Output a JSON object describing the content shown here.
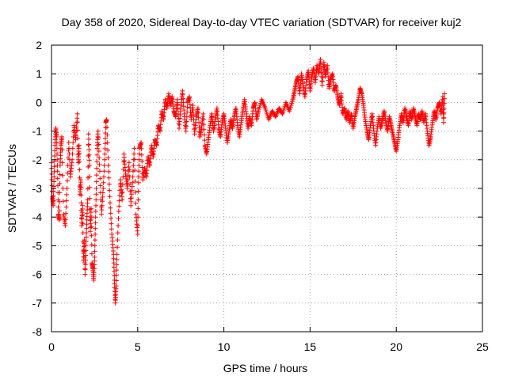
{
  "chart_data": {
    "type": "scatter",
    "title": "Day 358 of 2020, Sidereal Day-to-day VTEC variation (SDTVAR) for receiver kuj2",
    "xlabel": "GPS time / hours",
    "ylabel": "SDTVAR / TECUs",
    "xlim": [
      0,
      25
    ],
    "ylim": [
      -8,
      2
    ],
    "xticks": [
      0,
      5,
      10,
      15,
      20,
      25
    ],
    "xtick_labels": [
      "0",
      "5",
      "10",
      "15",
      "20",
      "25"
    ],
    "yticks": [
      -8,
      -7,
      -6,
      -5,
      -4,
      -3,
      -2,
      -1,
      0,
      1,
      2
    ],
    "ytick_labels": [
      "-8",
      "-7",
      "-6",
      "-5",
      "-4",
      "-3",
      "-2",
      "-1",
      "0",
      "1",
      "2"
    ],
    "grid": true,
    "marker": "+",
    "series": [
      {
        "name": "SDTVAR",
        "color": "#ff0000",
        "points": [
          [
            0.0,
            -2.1
          ],
          [
            0.05,
            -3.3
          ],
          [
            0.1,
            -3.6
          ],
          [
            0.15,
            -2.6
          ],
          [
            0.2,
            -1.5
          ],
          [
            0.25,
            -0.9
          ],
          [
            0.3,
            -1.2
          ],
          [
            0.35,
            -2.4
          ],
          [
            0.4,
            -3.9
          ],
          [
            0.45,
            -4.1
          ],
          [
            0.5,
            -2.2
          ],
          [
            0.55,
            -1.5
          ],
          [
            0.6,
            -1.2
          ],
          [
            0.7,
            -3.9
          ],
          [
            0.8,
            -4.3
          ],
          [
            0.9,
            -3.0
          ],
          [
            1.0,
            -1.4
          ],
          [
            1.1,
            -2.6
          ],
          [
            1.2,
            -2.0
          ],
          [
            1.3,
            -0.8
          ],
          [
            1.4,
            -1.3
          ],
          [
            1.5,
            -0.4
          ],
          [
            1.55,
            -2.1
          ],
          [
            1.6,
            -1.5
          ],
          [
            1.65,
            -3.2
          ],
          [
            1.7,
            -2.7
          ],
          [
            1.75,
            -4.3
          ],
          [
            1.8,
            -3.6
          ],
          [
            1.85,
            -5.5
          ],
          [
            1.9,
            -4.8
          ],
          [
            1.95,
            -6.0
          ],
          [
            2.0,
            -5.0
          ],
          [
            2.05,
            -4.1
          ],
          [
            2.1,
            -3.4
          ],
          [
            2.15,
            -1.1
          ],
          [
            2.2,
            -2.2
          ],
          [
            2.25,
            -4.5
          ],
          [
            2.3,
            -3.7
          ],
          [
            2.35,
            -5.6
          ],
          [
            2.4,
            -5.8
          ],
          [
            2.45,
            -6.2
          ],
          [
            2.5,
            -5.4
          ],
          [
            2.55,
            -4.2
          ],
          [
            2.6,
            -3.0
          ],
          [
            2.65,
            -1.6
          ],
          [
            2.7,
            -1.0
          ],
          [
            2.8,
            -2.4
          ],
          [
            2.9,
            -3.9
          ],
          [
            3.0,
            -3.0
          ],
          [
            3.1,
            -1.8
          ],
          [
            3.15,
            -0.7
          ],
          [
            3.2,
            -0.6
          ],
          [
            3.3,
            -2.2
          ],
          [
            3.4,
            -3.5
          ],
          [
            3.5,
            -4.6
          ],
          [
            3.6,
            -5.3
          ],
          [
            3.65,
            -6.2
          ],
          [
            3.7,
            -7.0
          ],
          [
            3.75,
            -6.4
          ],
          [
            3.8,
            -5.3
          ],
          [
            3.9,
            -3.8
          ],
          [
            4.0,
            -2.7
          ],
          [
            4.1,
            -3.4
          ],
          [
            4.2,
            -1.8
          ],
          [
            4.3,
            -2.5
          ],
          [
            4.4,
            -3.0
          ],
          [
            4.5,
            -2.1
          ],
          [
            4.6,
            -3.6
          ],
          [
            4.7,
            -2.8
          ],
          [
            4.8,
            -1.6
          ],
          [
            4.9,
            -3.9
          ],
          [
            5.0,
            -4.6
          ],
          [
            5.05,
            -2.8
          ],
          [
            5.1,
            -1.6
          ],
          [
            5.2,
            -1.4
          ],
          [
            5.3,
            -2.7
          ],
          [
            5.4,
            -2.3
          ],
          [
            5.5,
            -2.6
          ],
          [
            5.6,
            -1.9
          ],
          [
            5.7,
            -2.2
          ],
          [
            5.8,
            -1.5
          ],
          [
            5.9,
            -1.9
          ],
          [
            6.0,
            -1.3
          ],
          [
            6.1,
            -1.5
          ],
          [
            6.2,
            -0.8
          ],
          [
            6.3,
            -1.0
          ],
          [
            6.4,
            -0.3
          ],
          [
            6.5,
            -0.6
          ],
          [
            6.6,
            0.1
          ],
          [
            6.7,
            -0.2
          ],
          [
            6.8,
            0.3
          ],
          [
            6.9,
            -0.1
          ],
          [
            7.0,
            0.2
          ],
          [
            7.1,
            -0.3
          ],
          [
            7.2,
            -0.5
          ],
          [
            7.3,
            0.1
          ],
          [
            7.4,
            -0.9
          ],
          [
            7.5,
            -0.2
          ],
          [
            7.6,
            0.4
          ],
          [
            7.7,
            -0.4
          ],
          [
            7.8,
            -1.0
          ],
          [
            7.9,
            0.0
          ],
          [
            8.0,
            0.2
          ],
          [
            8.1,
            -0.6
          ],
          [
            8.2,
            -0.1
          ],
          [
            8.3,
            -1.1
          ],
          [
            8.4,
            -0.5
          ],
          [
            8.5,
            -0.2
          ],
          [
            8.6,
            -1.2
          ],
          [
            8.7,
            -0.9
          ],
          [
            8.8,
            -0.4
          ],
          [
            8.9,
            -1.5
          ],
          [
            9.0,
            -1.8
          ],
          [
            9.1,
            -1.3
          ],
          [
            9.2,
            -0.8
          ],
          [
            9.3,
            -0.4
          ],
          [
            9.4,
            -1.0
          ],
          [
            9.5,
            -0.6
          ],
          [
            9.6,
            -0.2
          ],
          [
            9.7,
            -0.9
          ],
          [
            9.8,
            -1.2
          ],
          [
            9.9,
            -0.7
          ],
          [
            10.0,
            -0.4
          ],
          [
            10.1,
            -0.9
          ],
          [
            10.2,
            -1.4
          ],
          [
            10.3,
            -1.0
          ],
          [
            10.4,
            -0.6
          ],
          [
            10.5,
            -0.9
          ],
          [
            10.6,
            -0.5
          ],
          [
            10.7,
            -0.2
          ],
          [
            10.8,
            -0.8
          ],
          [
            10.9,
            -1.2
          ],
          [
            11.0,
            -0.7
          ],
          [
            11.1,
            -0.3
          ],
          [
            11.2,
            0.1
          ],
          [
            11.3,
            -0.4
          ],
          [
            11.4,
            -0.9
          ],
          [
            11.5,
            -0.5
          ],
          [
            11.6,
            -0.8
          ],
          [
            11.7,
            -0.2
          ],
          [
            11.8,
            0.0
          ],
          [
            11.9,
            -0.6
          ],
          [
            12.0,
            -0.3
          ],
          [
            12.2,
            0.1
          ],
          [
            12.4,
            -0.2
          ],
          [
            12.6,
            -0.6
          ],
          [
            12.8,
            -0.3
          ],
          [
            13.0,
            -0.5
          ],
          [
            13.2,
            -0.2
          ],
          [
            13.4,
            -0.4
          ],
          [
            13.6,
            0.0
          ],
          [
            13.8,
            -0.3
          ],
          [
            14.0,
            0.1
          ],
          [
            14.1,
            0.4
          ],
          [
            14.2,
            0.7
          ],
          [
            14.3,
            0.9
          ],
          [
            14.4,
            0.3
          ],
          [
            14.5,
            1.0
          ],
          [
            14.6,
            0.6
          ],
          [
            14.7,
            0.2
          ],
          [
            14.8,
            0.8
          ],
          [
            14.9,
            1.1
          ],
          [
            15.0,
            0.4
          ],
          [
            15.1,
            0.9
          ],
          [
            15.2,
            1.2
          ],
          [
            15.3,
            0.7
          ],
          [
            15.4,
            1.3
          ],
          [
            15.5,
            1.0
          ],
          [
            15.6,
            1.5
          ],
          [
            15.7,
            0.6
          ],
          [
            15.8,
            1.4
          ],
          [
            15.9,
            0.9
          ],
          [
            16.0,
            1.3
          ],
          [
            16.1,
            0.5
          ],
          [
            16.2,
            0.8
          ],
          [
            16.3,
            1.0
          ],
          [
            16.4,
            0.4
          ],
          [
            16.5,
            0.6
          ],
          [
            16.6,
            0.2
          ],
          [
            16.7,
            -0.1
          ],
          [
            16.8,
            0.3
          ],
          [
            16.9,
            -0.4
          ],
          [
            17.0,
            -0.2
          ],
          [
            17.1,
            -0.6
          ],
          [
            17.2,
            -0.3
          ],
          [
            17.3,
            -0.7
          ],
          [
            17.4,
            -0.4
          ],
          [
            17.5,
            -0.9
          ],
          [
            17.6,
            -0.5
          ],
          [
            17.7,
            -0.2
          ],
          [
            17.8,
            0.1
          ],
          [
            17.9,
            0.5
          ],
          [
            18.0,
            0.3
          ],
          [
            18.1,
            -0.1
          ],
          [
            18.2,
            -0.6
          ],
          [
            18.3,
            -1.0
          ],
          [
            18.4,
            -1.3
          ],
          [
            18.5,
            -0.8
          ],
          [
            18.6,
            -0.4
          ],
          [
            18.7,
            -1.0
          ],
          [
            18.8,
            -1.5
          ],
          [
            18.9,
            -0.9
          ],
          [
            19.0,
            -0.5
          ],
          [
            19.1,
            -0.9
          ],
          [
            19.2,
            -0.6
          ],
          [
            19.3,
            -0.3
          ],
          [
            19.4,
            -0.7
          ],
          [
            19.5,
            -1.0
          ],
          [
            19.6,
            -0.5
          ],
          [
            19.7,
            -0.8
          ],
          [
            19.8,
            -1.1
          ],
          [
            19.9,
            -1.4
          ],
          [
            20.0,
            -1.7
          ],
          [
            20.1,
            -1.3
          ],
          [
            20.2,
            -0.8
          ],
          [
            20.3,
            -0.4
          ],
          [
            20.4,
            -0.7
          ],
          [
            20.5,
            -0.2
          ],
          [
            20.6,
            -0.5
          ],
          [
            20.7,
            -0.8
          ],
          [
            20.8,
            -0.3
          ],
          [
            20.9,
            -0.6
          ],
          [
            21.0,
            -0.2
          ],
          [
            21.1,
            -0.5
          ],
          [
            21.2,
            -0.8
          ],
          [
            21.3,
            -0.4
          ],
          [
            21.4,
            -0.6
          ],
          [
            21.5,
            -0.3
          ],
          [
            21.6,
            -0.7
          ],
          [
            21.7,
            -0.4
          ],
          [
            21.8,
            -1.0
          ],
          [
            21.9,
            -1.5
          ],
          [
            22.0,
            -1.2
          ],
          [
            22.1,
            -0.7
          ],
          [
            22.2,
            -0.3
          ],
          [
            22.3,
            -0.6
          ],
          [
            22.4,
            -0.2
          ],
          [
            22.5,
            0.0
          ],
          [
            22.6,
            -0.4
          ],
          [
            22.7,
            0.2
          ],
          [
            22.75,
            -0.7
          ],
          [
            22.8,
            0.3
          ]
        ]
      }
    ]
  }
}
